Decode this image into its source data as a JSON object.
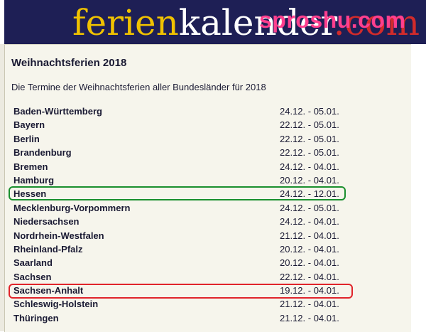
{
  "header": {
    "logo_part1": "ferien",
    "logo_part2": "kalender",
    "logo_part3": ".com",
    "watermark": "sproshu.com"
  },
  "page": {
    "title": "Weihnachtsferien 2018",
    "subtitle": "Die Termine der Weihnachtsferien aller Bundesländer für 2018"
  },
  "rows": [
    {
      "state": "Baden-Württemberg",
      "dates": "24.12. - 05.01."
    },
    {
      "state": "Bayern",
      "dates": "22.12. - 05.01."
    },
    {
      "state": "Berlin",
      "dates": "22.12. - 05.01."
    },
    {
      "state": "Brandenburg",
      "dates": "22.12. - 05.01."
    },
    {
      "state": "Bremen",
      "dates": "24.12. - 04.01."
    },
    {
      "state": "Hamburg",
      "dates": "20.12. - 04.01."
    },
    {
      "state": "Hessen",
      "dates": "24.12. - 12.01."
    },
    {
      "state": "Mecklenburg-Vorpommern",
      "dates": "24.12. - 05.01."
    },
    {
      "state": "Niedersachsen",
      "dates": "24.12. - 04.01."
    },
    {
      "state": "Nordrhein-Westfalen",
      "dates": "21.12. - 04.01."
    },
    {
      "state": "Rheinland-Pfalz",
      "dates": "20.12. - 04.01."
    },
    {
      "state": "Saarland",
      "dates": "20.12. - 04.01."
    },
    {
      "state": "Sachsen",
      "dates": "22.12. - 04.01."
    },
    {
      "state": "Sachsen-Anhalt",
      "dates": "19.12. - 04.01."
    },
    {
      "state": "Schleswig-Holstein",
      "dates": "21.12. - 04.01."
    },
    {
      "state": "Thüringen",
      "dates": "21.12. - 04.01."
    }
  ],
  "highlight_colors": {
    "hessen": "#1a8f2e",
    "sachsen_anhalt": "#e0242a"
  }
}
